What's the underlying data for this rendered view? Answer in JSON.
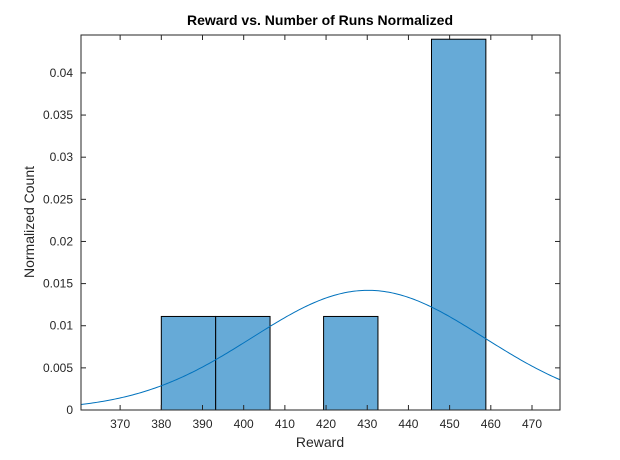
{
  "chart_data": {
    "type": "bar",
    "title": "Reward vs. Number of Runs Normalized",
    "xlabel": "Reward",
    "ylabel": "Normalized Count",
    "xlim": [
      360.5,
      476.8
    ],
    "ylim": [
      0,
      0.0445
    ],
    "xticks": [
      370,
      380,
      390,
      400,
      410,
      420,
      430,
      440,
      450,
      460,
      470
    ],
    "yticks": [
      0,
      0.005,
      0.01,
      0.015,
      0.02,
      0.025,
      0.03,
      0.035,
      0.04
    ],
    "ytick_labels": [
      "0",
      "0.005",
      "0.01",
      "0.015",
      "0.02",
      "0.025",
      "0.03",
      "0.035",
      "0.04"
    ],
    "bins": [
      {
        "x0": 380.0,
        "x1": 393.2,
        "value": 0.0111
      },
      {
        "x0": 393.2,
        "x1": 406.4,
        "value": 0.0111
      },
      {
        "x0": 419.4,
        "x1": 432.6,
        "value": 0.0111
      },
      {
        "x0": 445.6,
        "x1": 458.8,
        "value": 0.044
      }
    ],
    "fit_curve": {
      "type": "normal",
      "mean": 430.2,
      "peak": 0.0142
    },
    "bar_color": "#66aad7",
    "bar_edge_color": "#000000",
    "curve_color": "#0072bd",
    "grid": false
  }
}
